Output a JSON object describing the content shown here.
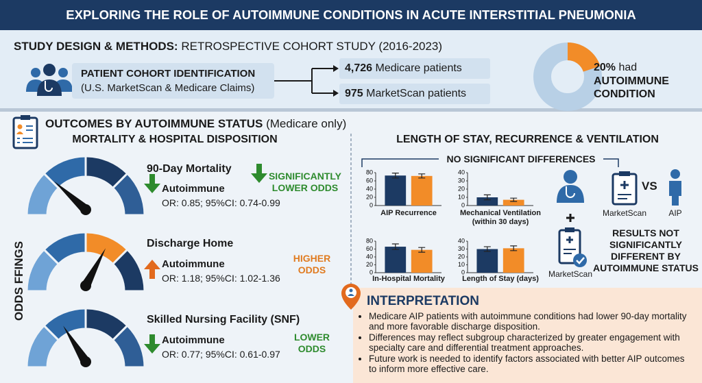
{
  "header": {
    "title": "EXPLORING THE ROLE OF AUTOIMMUNE CONDITIONS IN ACUTE INTERSTITIAL PNEUMONIA"
  },
  "design": {
    "label": "STUDY DESIGN & METHODS:",
    "text": "RETROSPECTIVE COHORT STUDY (2016-2023)"
  },
  "cohort": {
    "title": "PATIENT COHORT IDENTIFICATION",
    "source": "(U.S. MarketScan & Medicare Claims)",
    "groups": [
      {
        "count": "4,726",
        "label": "Medicare patients"
      },
      {
        "count": "975",
        "label": "MarketScan patients"
      }
    ]
  },
  "autoimmune_share": {
    "value": 20,
    "label": "20%",
    "note": "had",
    "condition": "AUTOIMMUNE CONDITION"
  },
  "outcomes": {
    "title": "OUTCOMES BY AUTOIMMUNE STATUS",
    "scope": "(Medicare only)",
    "side_label": "ODDS FFINGS",
    "mortality_title": "MORTALITY & HOSPITAL DISPOSITION",
    "items": [
      {
        "title": "90-Day Mortality",
        "group": "Autoimmune",
        "stat": "OR: 0.85; 95%CI: 0.74-0.99",
        "verdict": "SIGNIFICANTLY LOWER ODDS"
      },
      {
        "title": "Discharge Home",
        "group": "Autoimmune",
        "stat": "OR: 1.18; 95%CI: 1.02-1.36",
        "verdict": "HIGHER ODDS"
      },
      {
        "title": "Skilled Nursing Facility (SNF)",
        "group": "Autoimmune",
        "stat": "OR: 0.77; 95%CI: 0.61-0.97",
        "verdict": "LOWER ODDS"
      }
    ]
  },
  "secondary": {
    "title": "LENGTH OF STAY, RECURRENCE & VENTILATION",
    "note": "NO SIGNIFICANT DIFFERENCES",
    "compare_left": "MarketScan",
    "vs": "VS",
    "compare_right": "AIP",
    "plus_label": "MarketScan",
    "result": "RESULTS NOT SIGNIFICANTLY DIFFERENT BY AUTOIMMUNE STATUS"
  },
  "chart_data": [
    {
      "type": "bar",
      "title": "AIP Recurrence",
      "values": [
        73,
        72
      ],
      "errors": [
        6,
        5
      ],
      "colors": [
        "#1c3a63",
        "#f28c28"
      ],
      "ylim": [
        0,
        80
      ],
      "yticks": [
        0,
        20,
        40,
        60,
        80
      ]
    },
    {
      "type": "bar",
      "title": "Mechanical Ventilation (within 30 days)",
      "values": [
        10,
        7
      ],
      "errors": [
        3,
        2
      ],
      "colors": [
        "#1c3a63",
        "#f28c28"
      ],
      "ylim": [
        0,
        40
      ],
      "yticks": [
        0,
        10,
        20,
        30,
        40
      ]
    },
    {
      "type": "bar",
      "title": "In-Hospital Mortality",
      "values": [
        66,
        58
      ],
      "errors": [
        7,
        6
      ],
      "colors": [
        "#1c3a63",
        "#f28c28"
      ],
      "ylim": [
        0,
        80
      ],
      "yticks": [
        0,
        20,
        40,
        60,
        80
      ]
    },
    {
      "type": "bar",
      "title": "Length of Stay (days)",
      "values": [
        30,
        31
      ],
      "errors": [
        3,
        3
      ],
      "colors": [
        "#1c3a63",
        "#f28c28"
      ],
      "ylim": [
        0,
        40
      ],
      "yticks": [
        0,
        10,
        20,
        30,
        40
      ]
    }
  ],
  "interpretation": {
    "title": "INTERPRETATION",
    "bullets": [
      "Medicare AIP patients with autoimmune conditions had lower 90-day mortality and more favorable discharge disposition.",
      "Differences may reflect subgroup characterized by greater engagement with specialty care and differential treatment approaches.",
      "Future work is needed to identify factors associated with better AIP outcomes to inform more effective care."
    ]
  }
}
